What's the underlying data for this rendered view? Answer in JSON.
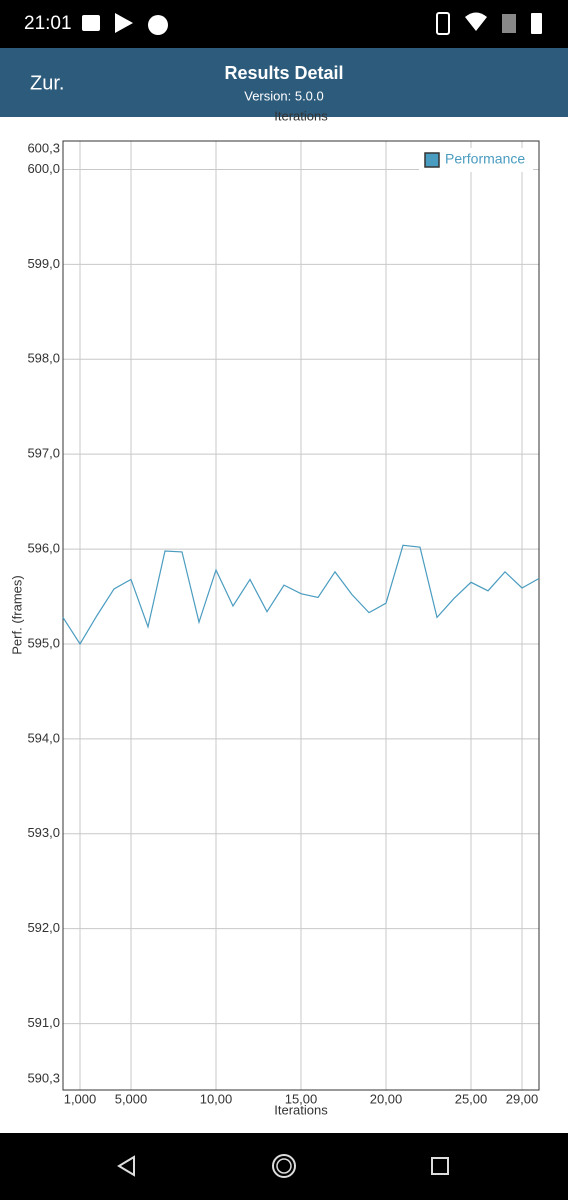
{
  "status_bar": {
    "time": "21:01"
  },
  "header": {
    "back": "Zur.",
    "title": "Results Detail",
    "subtitle": "Version: 5.0.0"
  },
  "chart_data": {
    "type": "line",
    "top_axis_label": "Iterations",
    "x_label": "Iterations",
    "y_label": "Perf. (frames)",
    "x": [
      0,
      1,
      2,
      3,
      4,
      5,
      6,
      7,
      8,
      9,
      10,
      11,
      12,
      13,
      14,
      15,
      16,
      17,
      18,
      19,
      20,
      21,
      22,
      23,
      24,
      25,
      26,
      27,
      28
    ],
    "series": [
      {
        "name": "Performance",
        "color": "#4a9cc0",
        "values": [
          595.28,
          595.0,
          595.3,
          595.58,
          595.68,
          595.18,
          595.98,
          595.97,
          595.23,
          595.78,
          595.4,
          595.68,
          595.34,
          595.62,
          595.53,
          595.49,
          595.76,
          595.52,
          595.33,
          595.43,
          596.04,
          596.02,
          595.28,
          595.48,
          595.65,
          595.56,
          595.76,
          595.59,
          595.69
        ]
      }
    ],
    "xlim": [
      0,
      28
    ],
    "xticks": [
      {
        "value": 1,
        "label": "1,000"
      },
      {
        "value": 4,
        "label": "5,000"
      },
      {
        "value": 9,
        "label": "10,00"
      },
      {
        "value": 14,
        "label": "15,00"
      },
      {
        "value": 19,
        "label": "20,00"
      },
      {
        "value": 24,
        "label": "25,00"
      },
      {
        "value": 27,
        "label": "29,00"
      }
    ],
    "ylim": [
      590.3,
      600.3
    ],
    "yticks": [
      {
        "value": 590.3,
        "label": "590,3"
      },
      {
        "value": 591,
        "label": "591,0"
      },
      {
        "value": 592,
        "label": "592,0"
      },
      {
        "value": 593,
        "label": "593,0"
      },
      {
        "value": 594,
        "label": "594,0"
      },
      {
        "value": 595,
        "label": "595,0"
      },
      {
        "value": 596,
        "label": "596,0"
      },
      {
        "value": 597,
        "label": "597,0"
      },
      {
        "value": 598,
        "label": "598,0"
      },
      {
        "value": 599,
        "label": "599,0"
      },
      {
        "value": 600,
        "label": "600,0"
      },
      {
        "value": 600.3,
        "label": "600,3"
      }
    ],
    "grid": true,
    "legend": "top-right"
  }
}
